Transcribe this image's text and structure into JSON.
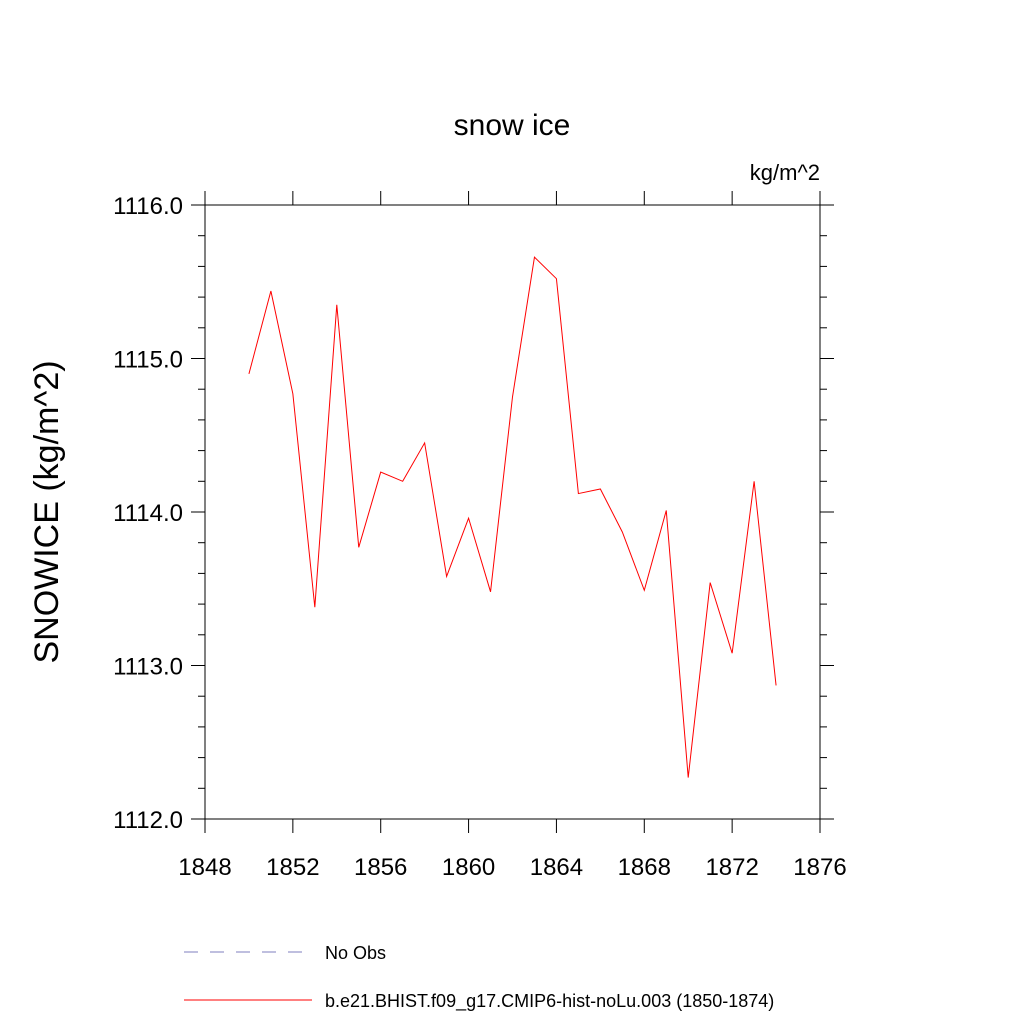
{
  "chart_data": {
    "type": "line",
    "title": "snow ice",
    "units": "kg/m^2",
    "ylabel": "SNOWICE  (kg/m^2)",
    "xlabel": "",
    "xlim": [
      1848,
      1876
    ],
    "ylim": [
      1112.0,
      1116.0
    ],
    "x_ticks": [
      1848,
      1852,
      1856,
      1860,
      1864,
      1868,
      1872,
      1876
    ],
    "x_tick_labels": [
      "1848",
      "1852",
      "1856",
      "1860",
      "1864",
      "1868",
      "1872",
      "1876"
    ],
    "y_ticks": [
      1112.0,
      1113.0,
      1114.0,
      1115.0,
      1116.0
    ],
    "y_tick_labels": [
      "1112.0",
      "1113.0",
      "1114.0",
      "1115.0",
      "1116.0"
    ],
    "grid": false,
    "legend_position": "bottom",
    "series": [
      {
        "name": "b.e21.BHIST.f09_g17.CMIP6-hist-noLu.003 (1850-1874)",
        "color": "#ff0000",
        "style": "solid",
        "x": [
          1850,
          1851,
          1852,
          1853,
          1854,
          1855,
          1856,
          1857,
          1858,
          1859,
          1860,
          1861,
          1862,
          1863,
          1864,
          1865,
          1866,
          1867,
          1868,
          1869,
          1870,
          1871,
          1872,
          1873,
          1874
        ],
        "y": [
          1114.9,
          1115.44,
          1114.77,
          1113.38,
          1115.35,
          1113.77,
          1114.26,
          1114.2,
          1114.45,
          1113.58,
          1113.96,
          1113.48,
          1114.75,
          1115.66,
          1115.52,
          1114.12,
          1114.15,
          1113.87,
          1113.49,
          1114.01,
          1112.27,
          1113.54,
          1113.08,
          1114.2,
          1112.87
        ]
      }
    ],
    "legend": [
      {
        "label": "No Obs",
        "color": "#7f7fbf",
        "style": "dashed"
      },
      {
        "label": "b.e21.BHIST.f09_g17.CMIP6-hist-noLu.003 (1850-1874)",
        "color": "#ff0000",
        "style": "solid"
      }
    ]
  }
}
